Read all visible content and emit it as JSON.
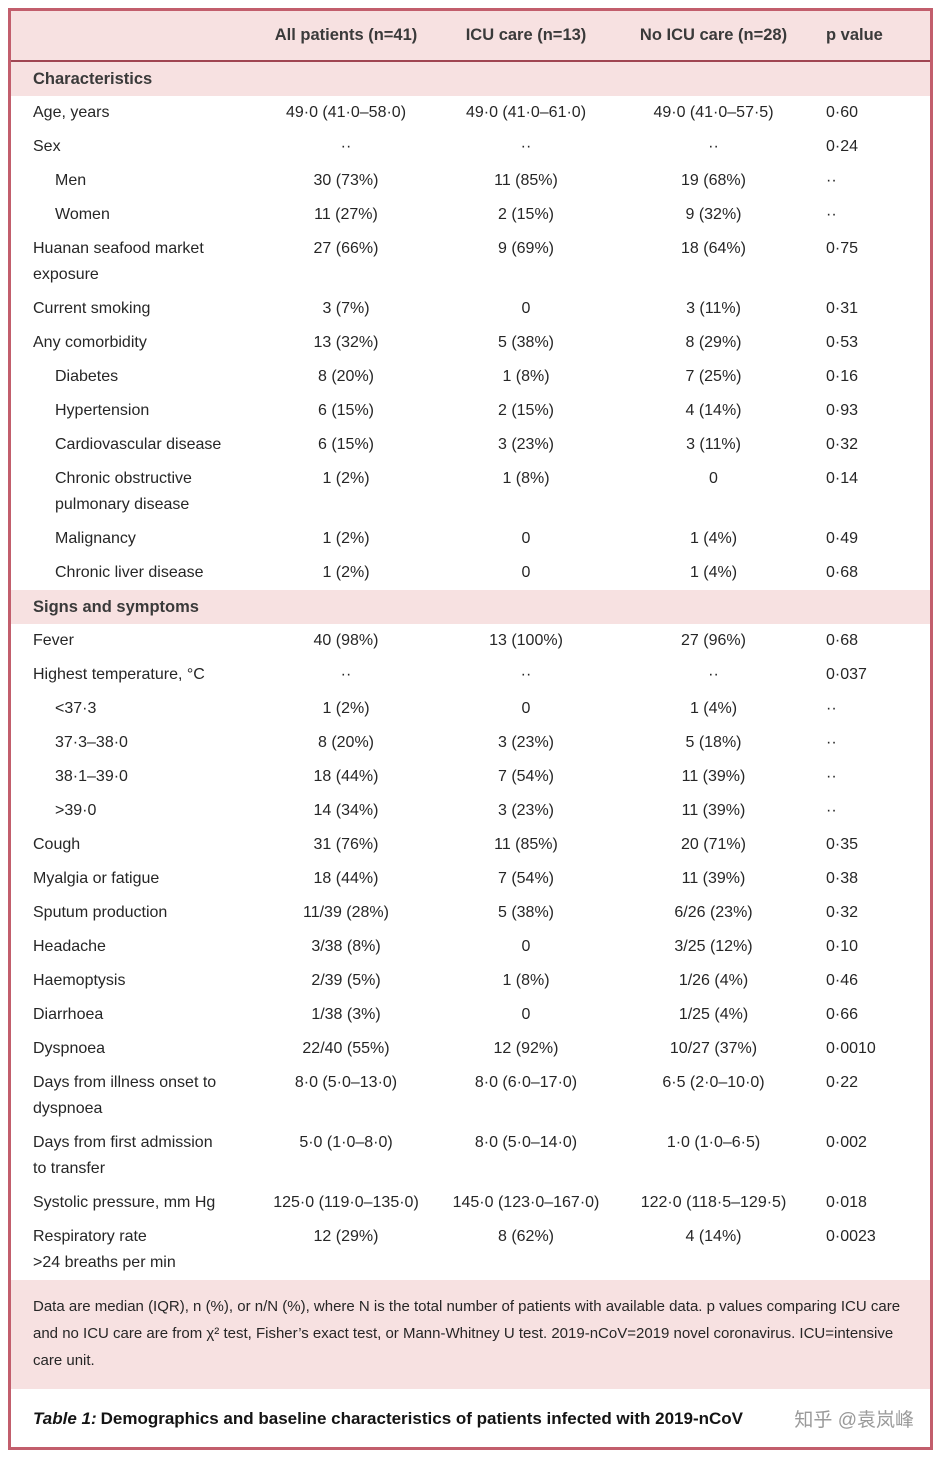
{
  "colors": {
    "frame": "#c25e6c",
    "band": "#f7e1e1",
    "rule": "#a04552",
    "watermark": "#9a9a9a"
  },
  "table": {
    "columns": [
      "",
      "All patients (n=41)",
      "ICU care (n=13)",
      "No ICU care (n=28)",
      "p value"
    ],
    "sections": [
      {
        "title": "Characteristics",
        "rows": [
          {
            "label": "Age, years",
            "indent": false,
            "values": [
              "49·0 (41·0–58·0)",
              "49·0 (41·0–61·0)",
              "49·0 (41·0–57·5)",
              "0·60"
            ]
          },
          {
            "label": "Sex",
            "indent": false,
            "values": [
              "··",
              "··",
              "··",
              "0·24"
            ]
          },
          {
            "label": "Men",
            "indent": true,
            "values": [
              "30 (73%)",
              "11 (85%)",
              "19 (68%)",
              "··"
            ]
          },
          {
            "label": "Women",
            "indent": true,
            "values": [
              "11 (27%)",
              "2 (15%)",
              "9 (32%)",
              "··"
            ]
          },
          {
            "label": "Huanan seafood market\nexposure",
            "indent": false,
            "values": [
              "27 (66%)",
              "9 (69%)",
              "18 (64%)",
              "0·75"
            ]
          },
          {
            "label": "Current smoking",
            "indent": false,
            "values": [
              "3 (7%)",
              "0",
              "3 (11%)",
              "0·31"
            ]
          },
          {
            "label": "Any comorbidity",
            "indent": false,
            "values": [
              "13 (32%)",
              "5 (38%)",
              "8 (29%)",
              "0·53"
            ]
          },
          {
            "label": "Diabetes",
            "indent": true,
            "values": [
              "8 (20%)",
              "1 (8%)",
              "7 (25%)",
              "0·16"
            ]
          },
          {
            "label": "Hypertension",
            "indent": true,
            "values": [
              "6 (15%)",
              "2 (15%)",
              "4 (14%)",
              "0·93"
            ]
          },
          {
            "label": "Cardiovascular disease",
            "indent": true,
            "values": [
              "6 (15%)",
              "3 (23%)",
              "3 (11%)",
              "0·32"
            ]
          },
          {
            "label": "Chronic obstructive\npulmonary disease",
            "indent": true,
            "values": [
              "1 (2%)",
              "1 (8%)",
              "0",
              "0·14"
            ]
          },
          {
            "label": "Malignancy",
            "indent": true,
            "values": [
              "1 (2%)",
              "0",
              "1 (4%)",
              "0·49"
            ]
          },
          {
            "label": "Chronic liver disease",
            "indent": true,
            "values": [
              "1 (2%)",
              "0",
              "1 (4%)",
              "0·68"
            ]
          }
        ]
      },
      {
        "title": "Signs and symptoms",
        "rows": [
          {
            "label": "Fever",
            "indent": false,
            "values": [
              "40 (98%)",
              "13 (100%)",
              "27 (96%)",
              "0·68"
            ]
          },
          {
            "label": "Highest temperature, °C",
            "indent": false,
            "values": [
              "··",
              "··",
              "··",
              "0·037"
            ]
          },
          {
            "label": "<37·3",
            "indent": true,
            "values": [
              "1 (2%)",
              "0",
              "1 (4%)",
              "··"
            ]
          },
          {
            "label": "37·3–38·0",
            "indent": true,
            "values": [
              "8 (20%)",
              "3 (23%)",
              "5 (18%)",
              "··"
            ]
          },
          {
            "label": "38·1–39·0",
            "indent": true,
            "values": [
              "18 (44%)",
              "7 (54%)",
              "11 (39%)",
              "··"
            ]
          },
          {
            "label": ">39·0",
            "indent": true,
            "values": [
              "14 (34%)",
              "3 (23%)",
              "11 (39%)",
              "··"
            ]
          },
          {
            "label": "Cough",
            "indent": false,
            "values": [
              "31 (76%)",
              "11 (85%)",
              "20 (71%)",
              "0·35"
            ]
          },
          {
            "label": "Myalgia or fatigue",
            "indent": false,
            "values": [
              "18 (44%)",
              "7 (54%)",
              "11 (39%)",
              "0·38"
            ]
          },
          {
            "label": "Sputum production",
            "indent": false,
            "values": [
              "11/39 (28%)",
              "5 (38%)",
              "6/26 (23%)",
              "0·32"
            ]
          },
          {
            "label": "Headache",
            "indent": false,
            "values": [
              "3/38 (8%)",
              "0",
              "3/25 (12%)",
              "0·10"
            ]
          },
          {
            "label": "Haemoptysis",
            "indent": false,
            "values": [
              "2/39 (5%)",
              "1 (8%)",
              "1/26 (4%)",
              "0·46"
            ]
          },
          {
            "label": "Diarrhoea",
            "indent": false,
            "values": [
              "1/38 (3%)",
              "0",
              "1/25 (4%)",
              "0·66"
            ]
          },
          {
            "label": "Dyspnoea",
            "indent": false,
            "values": [
              "22/40 (55%)",
              "12 (92%)",
              "10/27 (37%)",
              "0·0010"
            ]
          },
          {
            "label": "Days from illness onset to\ndyspnoea",
            "indent": false,
            "values": [
              "8·0 (5·0–13·0)",
              "8·0 (6·0–17·0)",
              "6·5 (2·0–10·0)",
              "0·22"
            ]
          },
          {
            "label": "Days from first admission\nto transfer",
            "indent": false,
            "values": [
              "5·0 (1·0–8·0)",
              "8·0 (5·0–14·0)",
              "1·0 (1·0–6·5)",
              "0·002"
            ]
          },
          {
            "label": "Systolic pressure, mm Hg",
            "indent": false,
            "values": [
              "125·0 (119·0–135·0)",
              "145·0 (123·0–167·0)",
              "122·0 (118·5–129·5)",
              "0·018"
            ]
          },
          {
            "label": "Respiratory rate\n>24 breaths per min",
            "indent": false,
            "values": [
              "12 (29%)",
              "8 (62%)",
              "4 (14%)",
              "0·0023"
            ]
          }
        ]
      }
    ],
    "footnote": "Data are median (IQR), n (%), or n/N (%), where N is the total number of patients with available data. p values comparing ICU care and no ICU care are from χ² test, Fisher’s exact test, or Mann-Whitney U test. 2019-nCoV=2019 novel coronavirus. ICU=intensive care unit.",
    "caption_label": "Table 1:",
    "caption_text": "Demographics and baseline characteristics of patients infected with 2019-nCoV"
  },
  "watermark": "知乎 @袁岚峰"
}
